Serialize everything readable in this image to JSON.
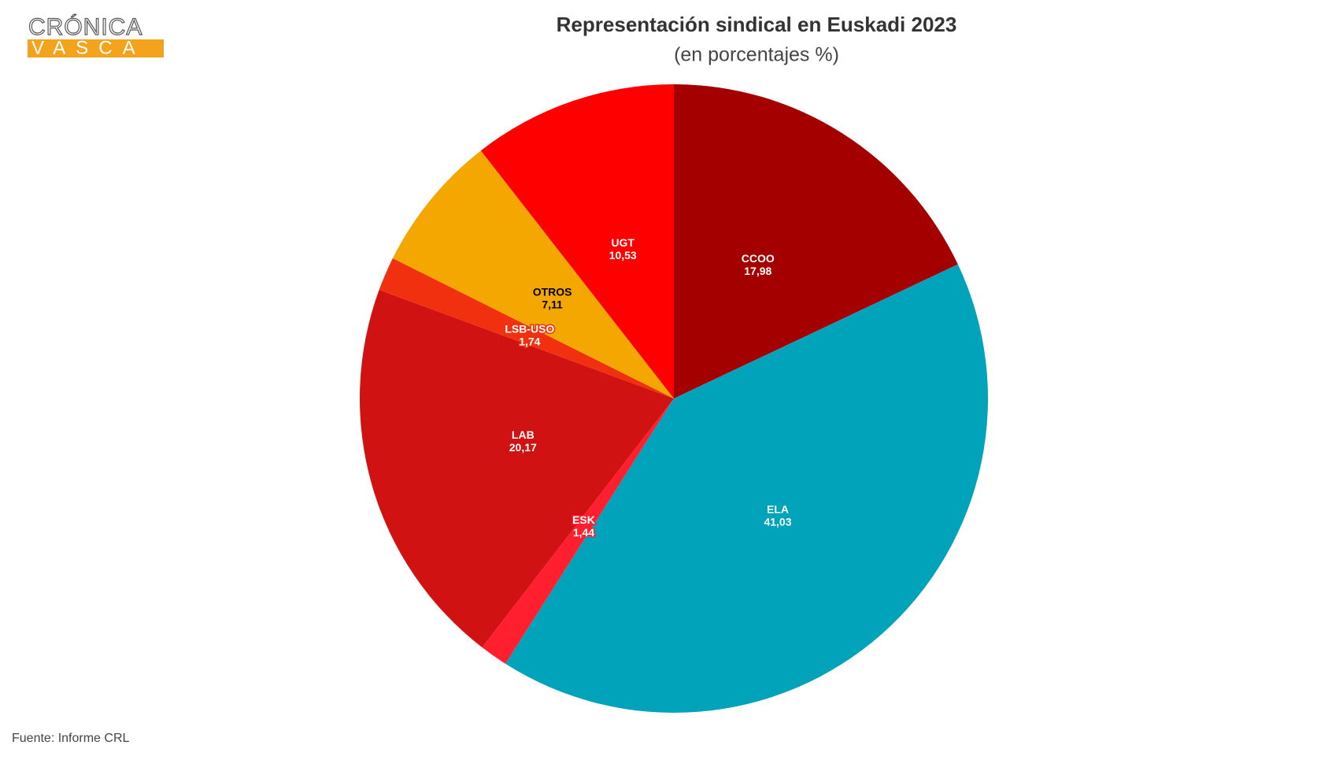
{
  "logo": {
    "line1": "CRÓNICA",
    "line2": "VASCA"
  },
  "chart_data": {
    "type": "pie",
    "title": "Representación sindical en Euskadi 2023",
    "subtitle": "(en porcentajes %)",
    "source": "Fuente: Informe CRL",
    "categories": [
      "CCOO",
      "ELA",
      "ESK",
      "LAB",
      "LSB-USO",
      "OTROS",
      "UGT"
    ],
    "values": [
      17.98,
      41.03,
      1.44,
      20.17,
      1.74,
      7.11,
      10.53
    ],
    "value_labels": [
      "17,98",
      "41,03",
      "1,44",
      "20,17",
      "1,74",
      "7,11",
      "10,53"
    ],
    "colors": [
      "#a50000",
      "#00a3b9",
      "#ff1f2e",
      "#d01212",
      "#f0300f",
      "#f4a700",
      "#ff0000"
    ]
  }
}
